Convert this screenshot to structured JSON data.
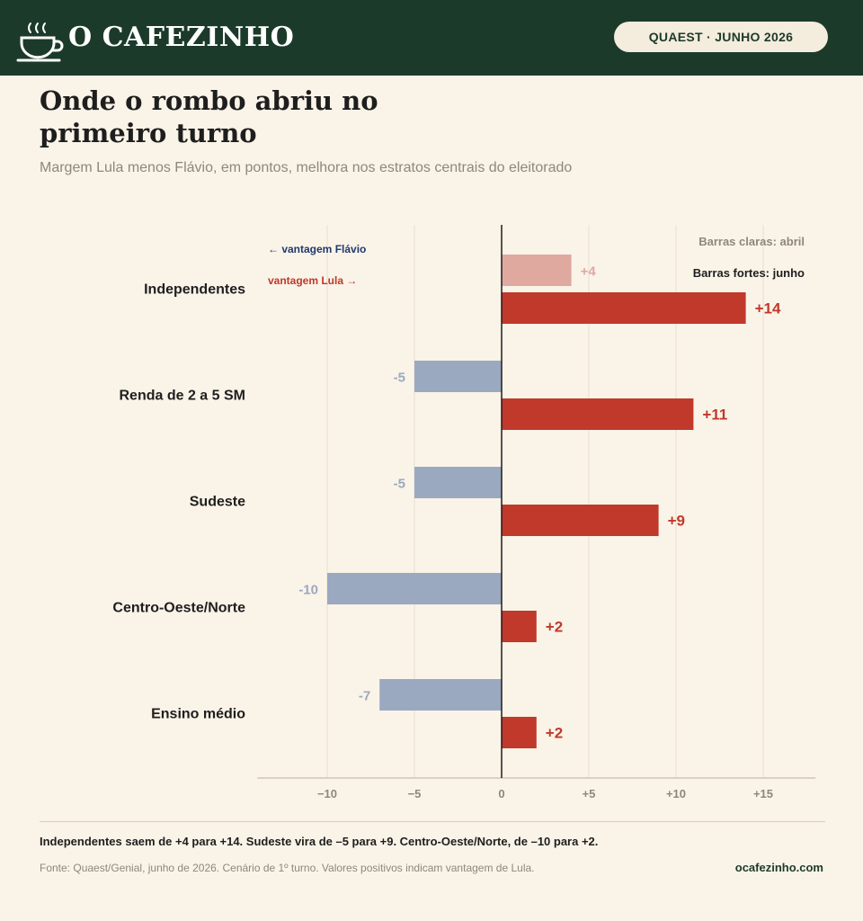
{
  "header": {
    "brand": "O CAFEZINHO",
    "badge": "QUAEST · JUNHO 2026",
    "logo_icon": "coffee-cup-icon"
  },
  "title": "Onde o rombo abriu no primeiro turno",
  "subtitle": "Margem Lula menos Flávio, em pontos, melhora nos estratos centrais do eleitorado",
  "chart_data": {
    "type": "bar",
    "orientation": "horizontal",
    "categories": [
      "Independentes",
      "Renda de 2 a 5 SM",
      "Sudeste",
      "Centro-Oeste/Norte",
      "Ensino médio"
    ],
    "series": [
      {
        "name": "Barras claras: abril",
        "values": [
          4,
          -5,
          -5,
          -10,
          -7
        ],
        "labels": [
          "+4",
          "-5",
          "-5",
          "-10",
          "-7"
        ]
      },
      {
        "name": "Barras fortes: junho",
        "values": [
          14,
          11,
          9,
          2,
          2
        ],
        "labels": [
          "+14",
          "+11",
          "+9",
          "+2",
          "+2"
        ]
      }
    ],
    "xlim": [
      -14,
      18
    ],
    "xticks": [
      -10,
      -5,
      0,
      5,
      10,
      15
    ],
    "xtick_labels": [
      "−10",
      "−5",
      "0",
      "+5",
      "+10",
      "+15"
    ],
    "annotations": {
      "left_direction": "← vantagem Flávio",
      "right_direction": "vantagem Lula →"
    },
    "grid": true,
    "legend_position": "top-right",
    "colors": {
      "abril_positive": "#e0a9a0",
      "abril_negative": "#9aa9c0",
      "junho_positive": "#c0392b",
      "junho_negative": "#1f3a6b",
      "flavio_text": "#1f3a6b",
      "lula_text": "#c0392b"
    }
  },
  "footer": {
    "note": "Independentes saem de +4 para +14. Sudeste vira de –5 para +9. Centro-Oeste/Norte, de –10 para +2.",
    "source": "Fonte: Quaest/Genial, junho de 2026. Cenário de 1º turno. Valores positivos indicam vantagem de Lula.",
    "site": "ocafezinho.com"
  }
}
